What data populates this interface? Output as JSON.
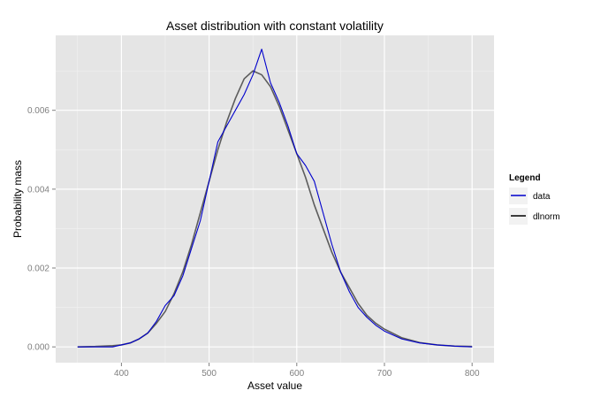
{
  "chart_data": {
    "type": "line",
    "title": "Asset distribution with constant volatility",
    "xlabel": "Asset value",
    "ylabel": "Probability mass",
    "xlim": [
      325,
      825
    ],
    "ylim": [
      -0.0004,
      0.0079
    ],
    "x_ticks": [
      400,
      500,
      600,
      700,
      800
    ],
    "x_tick_labels": [
      "400",
      "500",
      "600",
      "700",
      "800"
    ],
    "y_ticks": [
      0.0,
      0.002,
      0.004,
      0.006
    ],
    "y_tick_labels": [
      "0.000",
      "0.002",
      "0.004",
      "0.006"
    ],
    "grid": true,
    "legend": {
      "title": "Legend",
      "position": "right",
      "entries": [
        {
          "label": "data",
          "color": "#0000cc"
        },
        {
          "label": "dlnorm",
          "color": "#000000"
        }
      ]
    },
    "series": [
      {
        "name": "data",
        "color": "#0000cc",
        "x": [
          350,
          370,
          390,
          400,
          410,
          420,
          430,
          440,
          450,
          460,
          470,
          480,
          490,
          500,
          510,
          520,
          530,
          540,
          550,
          560,
          570,
          580,
          590,
          600,
          610,
          620,
          630,
          640,
          650,
          660,
          670,
          680,
          690,
          700,
          720,
          740,
          760,
          780,
          800
        ],
        "y": [
          0.0,
          0.0,
          0.0,
          5e-05,
          0.0001,
          0.0002,
          0.00035,
          0.00065,
          0.00105,
          0.0013,
          0.0018,
          0.0025,
          0.0032,
          0.0042,
          0.0052,
          0.0056,
          0.006,
          0.0064,
          0.0069,
          0.00755,
          0.0067,
          0.0062,
          0.0056,
          0.0049,
          0.0046,
          0.0042,
          0.0034,
          0.0026,
          0.0019,
          0.0014,
          0.001,
          0.00075,
          0.00055,
          0.0004,
          0.0002,
          0.0001,
          5e-05,
          2e-05,
          0.0
        ]
      },
      {
        "name": "dlnorm",
        "color": "#000000",
        "x": [
          350,
          370,
          390,
          400,
          410,
          420,
          430,
          440,
          450,
          460,
          470,
          480,
          490,
          500,
          510,
          520,
          530,
          540,
          550,
          560,
          570,
          580,
          590,
          600,
          610,
          620,
          630,
          640,
          650,
          660,
          670,
          680,
          690,
          700,
          720,
          740,
          760,
          780,
          800
        ],
        "y": [
          0.0,
          1e-05,
          3e-05,
          5e-05,
          0.0001,
          0.0002,
          0.00035,
          0.0006,
          0.0009,
          0.00135,
          0.0019,
          0.0026,
          0.0034,
          0.0042,
          0.005,
          0.0057,
          0.0063,
          0.0068,
          0.007,
          0.0069,
          0.0066,
          0.0061,
          0.0055,
          0.0049,
          0.0043,
          0.0036,
          0.003,
          0.0024,
          0.0019,
          0.0015,
          0.0011,
          0.0008,
          0.0006,
          0.00045,
          0.00023,
          0.00011,
          5e-05,
          2e-05,
          1e-05
        ]
      }
    ]
  }
}
